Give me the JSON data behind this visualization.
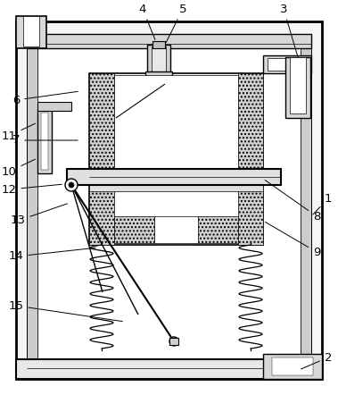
{
  "fig_width": 3.79,
  "fig_height": 4.42,
  "dpi": 100,
  "bg_color": "#ffffff",
  "lc": "#000000",
  "gray_fill": "#c8c8c8",
  "light_gray": "#e0e0e0",
  "white": "#ffffff",
  "stipple_color": "#d0d0d0"
}
